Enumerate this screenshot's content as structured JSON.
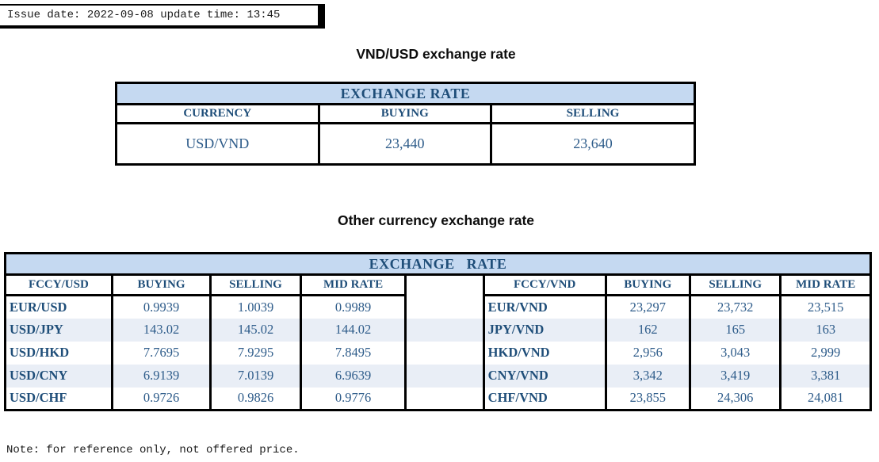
{
  "meta": {
    "issue_line": "Issue date: 2022-09-08 update time: 13:45",
    "note": "Note: for reference only, not offered price."
  },
  "colors": {
    "banner_bg": "#c5d9f1",
    "stripe_bg": "#e9eef6",
    "header_text": "#1f4e79",
    "value_text": "#2e5c8a",
    "border": "#000000"
  },
  "usd_table": {
    "title": "VND/USD exchange rate",
    "banner": "EXCHANGE RATE",
    "columns": [
      "CURRENCY",
      "BUYING",
      "SELLING"
    ],
    "rows": [
      [
        "USD/VND",
        "23,440",
        "23,640"
      ]
    ]
  },
  "other_table": {
    "title": "Other currency exchange rate",
    "banner": "EXCHANGE RATE",
    "left": {
      "columns": [
        "FCCY/USD",
        "BUYING",
        "SELLING",
        "MID RATE"
      ],
      "rows": [
        [
          "EUR/USD",
          "0.9939",
          "1.0039",
          "0.9989"
        ],
        [
          "USD/JPY",
          "143.02",
          "145.02",
          "144.02"
        ],
        [
          "USD/HKD",
          "7.7695",
          "7.9295",
          "7.8495"
        ],
        [
          "USD/CNY",
          "6.9139",
          "7.0139",
          "6.9639"
        ],
        [
          "USD/CHF",
          "0.9726",
          "0.9826",
          "0.9776"
        ]
      ]
    },
    "right": {
      "columns": [
        "FCCY/VND",
        "BUYING",
        "SELLING",
        "MID RATE"
      ],
      "rows": [
        [
          "EUR/VND",
          "23,297",
          "23,732",
          "23,515"
        ],
        [
          "JPY/VND",
          "162",
          "165",
          "163"
        ],
        [
          "HKD/VND",
          "2,956",
          "3,043",
          "2,999"
        ],
        [
          "CNY/VND",
          "3,342",
          "3,419",
          "3,381"
        ],
        [
          "CHF/VND",
          "23,855",
          "24,306",
          "24,081"
        ]
      ]
    }
  }
}
